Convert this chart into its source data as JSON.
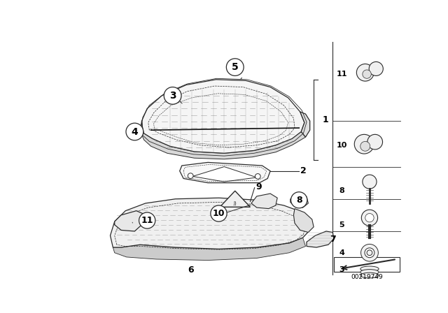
{
  "bg_color": "#ffffff",
  "diagram_number": "00219749",
  "color_main": "#2a2a2a",
  "lw": 0.9
}
